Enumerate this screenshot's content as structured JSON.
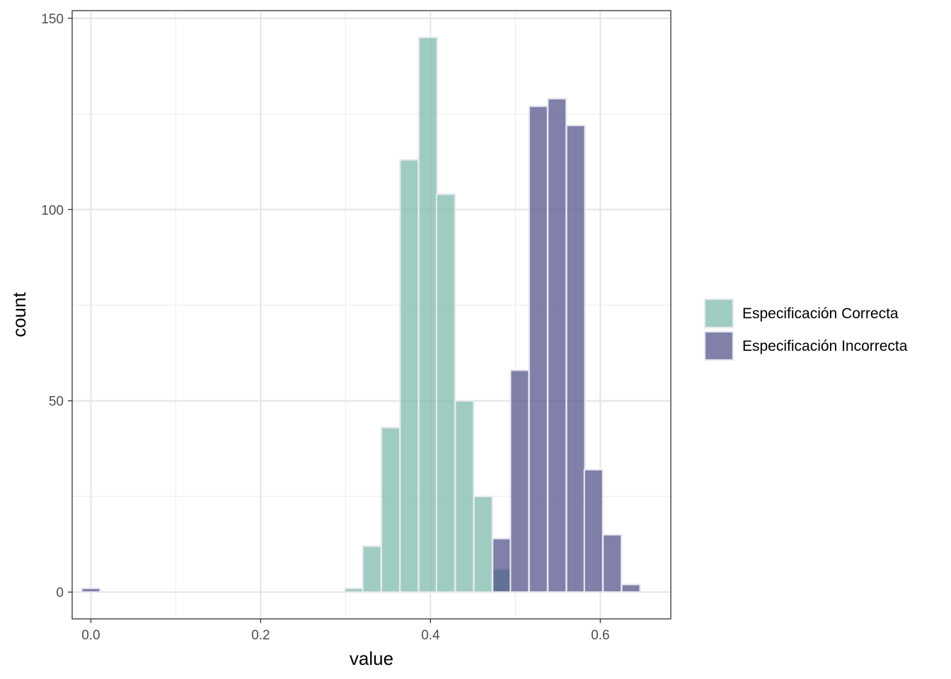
{
  "chart_data": {
    "type": "bar",
    "subtype": "histogram",
    "title": "",
    "xlabel": "value",
    "ylabel": "count",
    "xlim": [
      -0.022,
      0.683
    ],
    "ylim": [
      -7,
      152
    ],
    "x_ticks": [
      0.0,
      0.2,
      0.4,
      0.6
    ],
    "x_tick_labels": [
      "0.0",
      "0.2",
      "0.4",
      "0.6"
    ],
    "y_ticks": [
      0,
      50,
      100,
      150
    ],
    "y_tick_labels": [
      "0",
      "50",
      "100",
      "150"
    ],
    "bin_width": 0.0217,
    "grid": true,
    "legend_position": "right",
    "series": [
      {
        "name": "Especificación Correcta",
        "color": "#76b7a6",
        "opacity": 0.7,
        "bins": [
          {
            "x": 0.31,
            "count": 1
          },
          {
            "x": 0.331,
            "count": 12
          },
          {
            "x": 0.353,
            "count": 43
          },
          {
            "x": 0.375,
            "count": 113
          },
          {
            "x": 0.397,
            "count": 145
          },
          {
            "x": 0.418,
            "count": 104
          },
          {
            "x": 0.44,
            "count": 50
          },
          {
            "x": 0.462,
            "count": 25
          },
          {
            "x": 0.484,
            "count": 6
          }
        ]
      },
      {
        "name": "Especificación Incorrecta",
        "color": "#4b4a85",
        "opacity": 0.7,
        "bins": [
          {
            "x": 0.0,
            "count": 1
          },
          {
            "x": 0.484,
            "count": 14
          },
          {
            "x": 0.505,
            "count": 58
          },
          {
            "x": 0.527,
            "count": 127
          },
          {
            "x": 0.549,
            "count": 129
          },
          {
            "x": 0.571,
            "count": 122
          },
          {
            "x": 0.592,
            "count": 32
          },
          {
            "x": 0.614,
            "count": 15
          },
          {
            "x": 0.636,
            "count": 2
          }
        ]
      }
    ]
  }
}
